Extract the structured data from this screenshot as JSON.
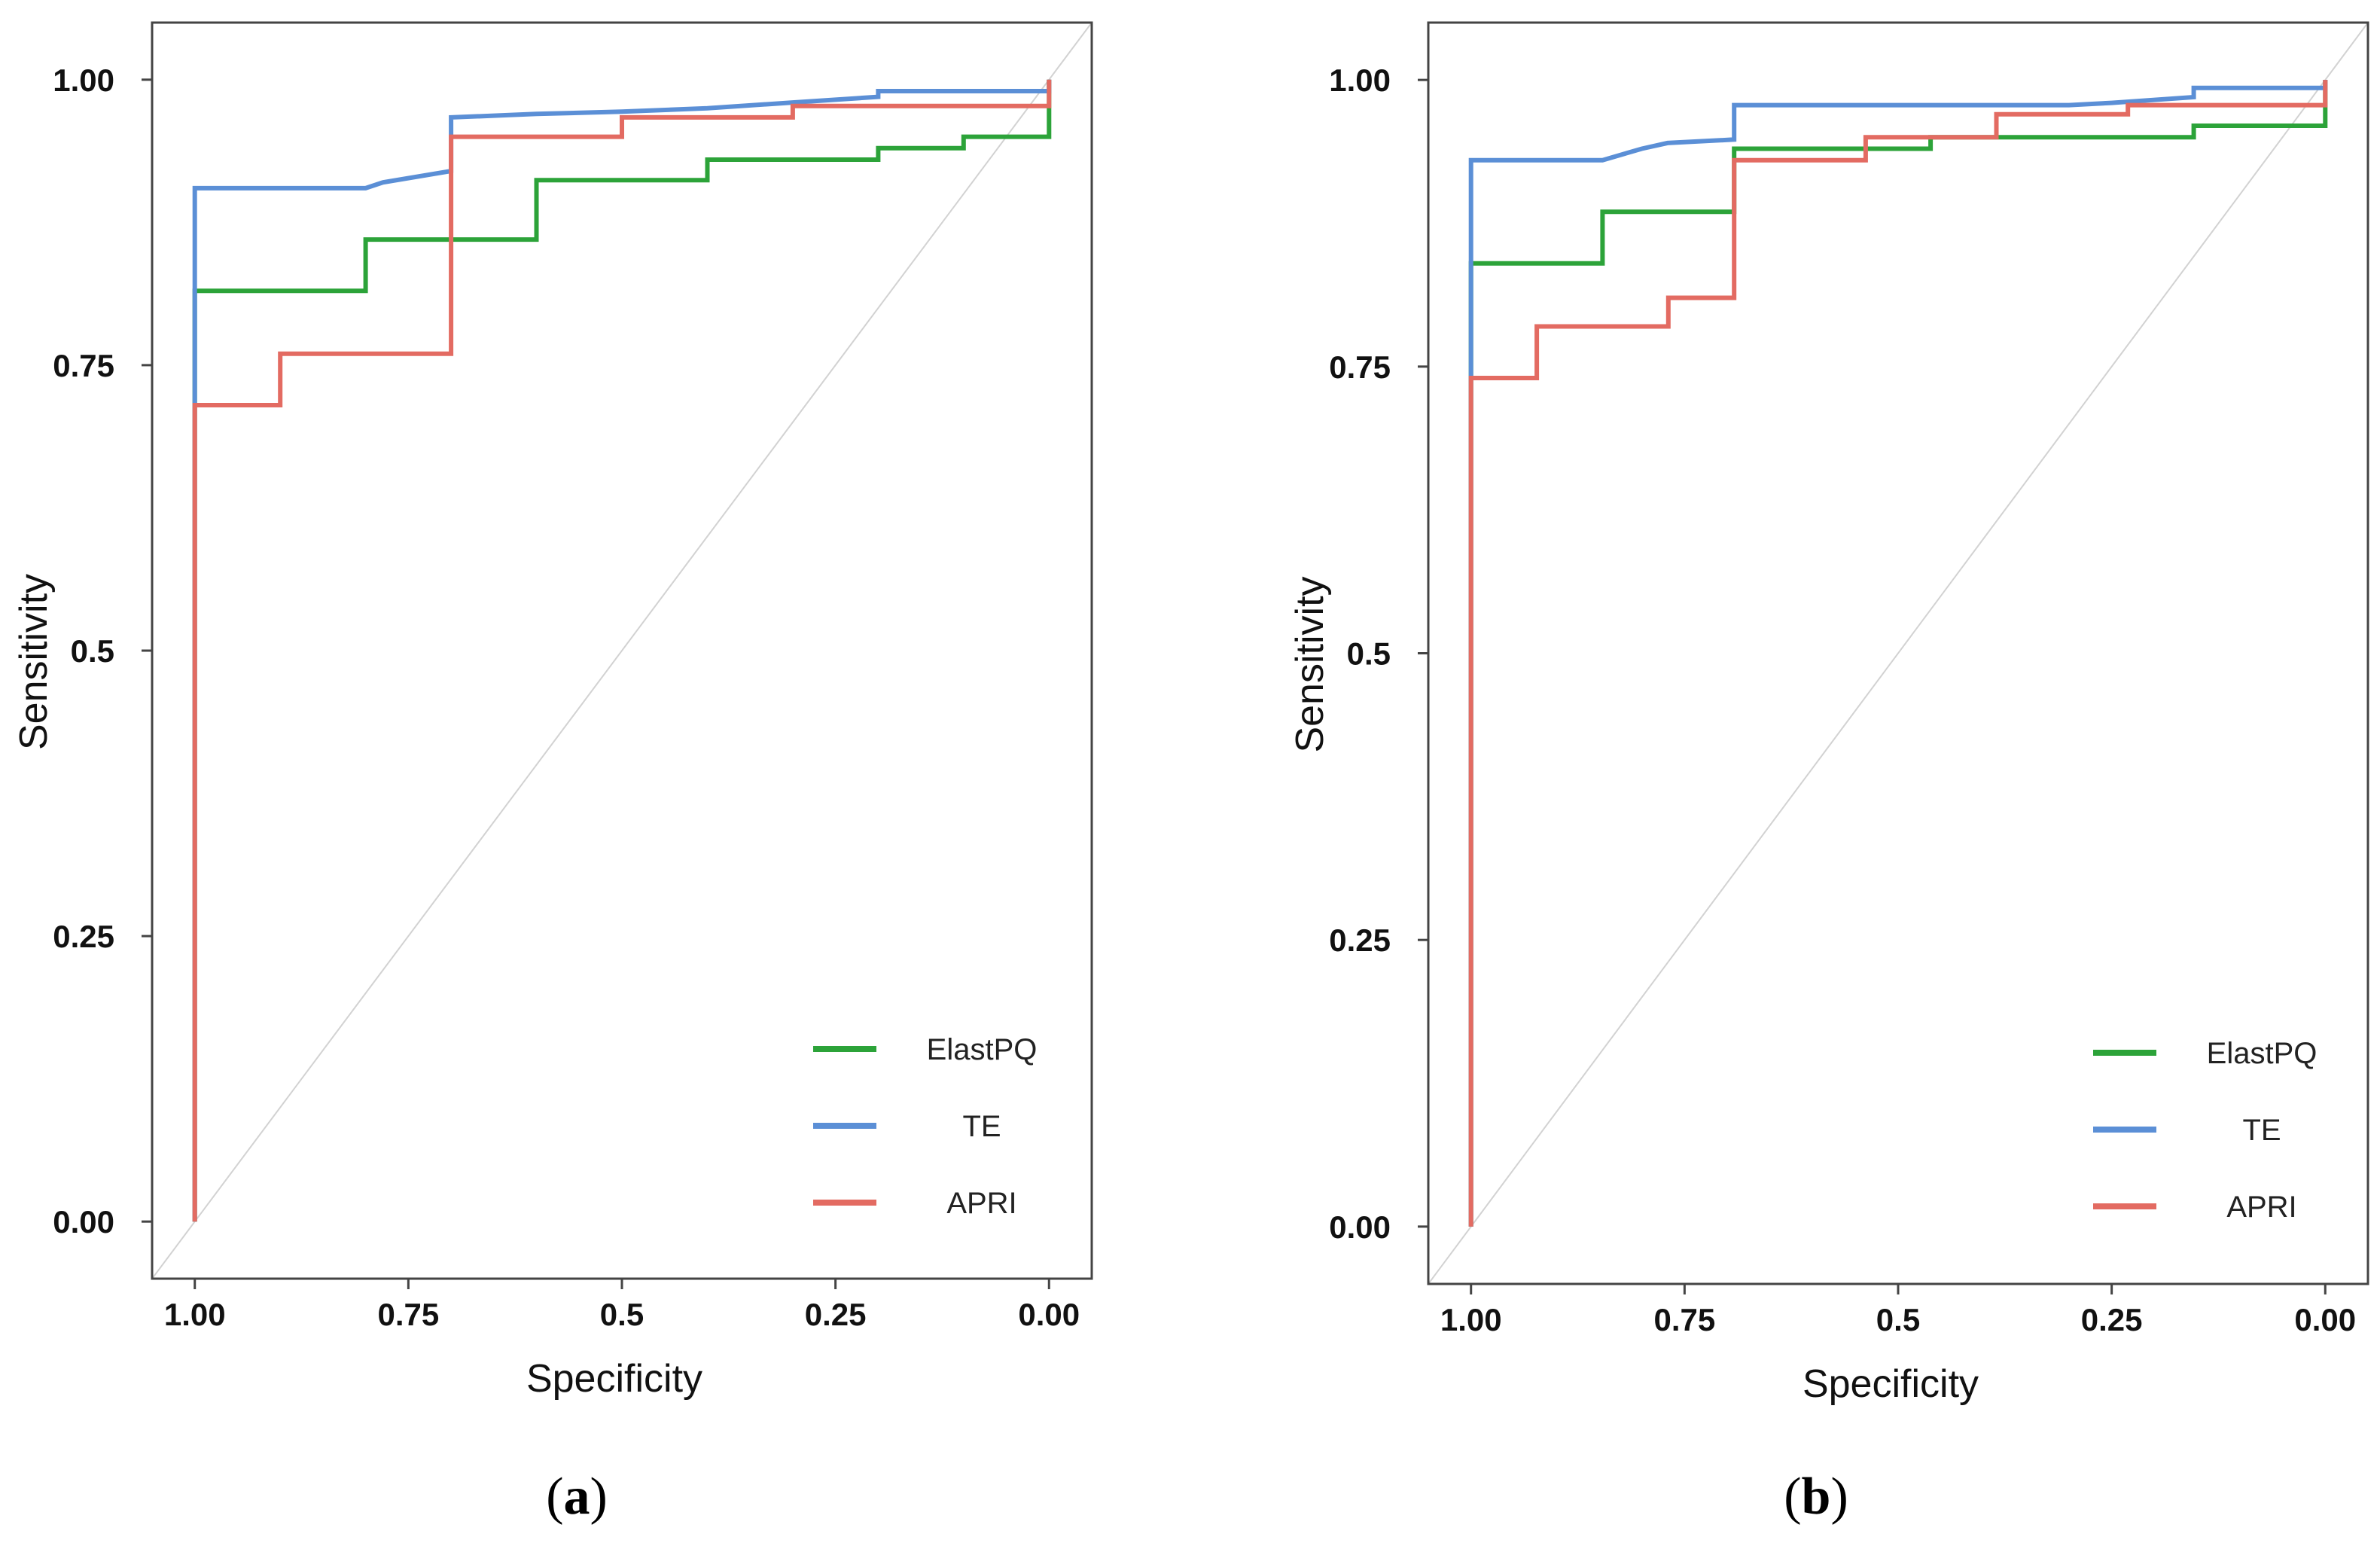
{
  "chart_data": [
    {
      "type": "line",
      "panel_label": "a",
      "xlabel": "Specificity",
      "ylabel": "Sensitivity",
      "x_reversed": true,
      "xlim": [
        1.05,
        -0.05
      ],
      "ylim": [
        -0.05,
        1.05
      ],
      "x_ticks": [
        1.0,
        0.75,
        0.5,
        0.25,
        0.0
      ],
      "x_tick_labels": [
        "1.00",
        "0.75",
        "0.5",
        "0.25",
        "0.00"
      ],
      "y_ticks": [
        0.0,
        0.25,
        0.5,
        0.75,
        1.0
      ],
      "y_tick_labels": [
        "0.00",
        "0.25",
        "0.5",
        "0.75",
        "1.00"
      ],
      "grid": false,
      "reference_diagonal": true,
      "legend_position": "bottom-right",
      "series": [
        {
          "name": "ElastPQ",
          "color": "#2ca339",
          "x": [
            1.0,
            1.0,
            0.8,
            0.8,
            0.6,
            0.6,
            0.4,
            0.4,
            0.2,
            0.2,
            0.1,
            0.1,
            0.0,
            0.0
          ],
          "y": [
            0.0,
            0.815,
            0.815,
            0.86,
            0.86,
            0.912,
            0.912,
            0.93,
            0.93,
            0.94,
            0.94,
            0.95,
            0.95,
            1.0
          ]
        },
        {
          "name": "TE",
          "color": "#5b8fd6",
          "x": [
            1.0,
            1.0,
            0.8,
            0.78,
            0.7,
            0.7,
            0.6,
            0.5,
            0.4,
            0.3,
            0.2,
            0.2,
            0.0,
            0.0
          ],
          "y": [
            0.0,
            0.905,
            0.905,
            0.91,
            0.92,
            0.967,
            0.97,
            0.972,
            0.975,
            0.98,
            0.985,
            0.99,
            0.99,
            1.0
          ]
        },
        {
          "name": "APRI",
          "color": "#e36b62",
          "x": [
            1.0,
            1.0,
            0.9,
            0.9,
            0.7,
            0.7,
            0.5,
            0.5,
            0.3,
            0.3,
            0.0,
            0.0
          ],
          "y": [
            0.0,
            0.715,
            0.715,
            0.76,
            0.76,
            0.95,
            0.95,
            0.967,
            0.967,
            0.977,
            0.977,
            1.0
          ]
        }
      ]
    },
    {
      "type": "line",
      "panel_label": "b",
      "xlabel": "Specificity",
      "ylabel": "Sensitivity",
      "x_reversed": true,
      "xlim": [
        1.05,
        -0.05
      ],
      "ylim": [
        -0.05,
        1.05
      ],
      "x_ticks": [
        1.0,
        0.75,
        0.5,
        0.25,
        0.0
      ],
      "x_tick_labels": [
        "1.00",
        "0.75",
        "0.5",
        "0.25",
        "0.00"
      ],
      "y_ticks": [
        0.0,
        0.25,
        0.5,
        0.75,
        1.0
      ],
      "y_tick_labels": [
        "0.00",
        "0.25",
        "0.5",
        "0.75",
        "1.00"
      ],
      "grid": false,
      "reference_diagonal": true,
      "legend_position": "bottom-right",
      "series": [
        {
          "name": "ElastPQ",
          "color": "#2ca339",
          "x": [
            1.0,
            1.0,
            0.846,
            0.846,
            0.692,
            0.692,
            0.462,
            0.462,
            0.154,
            0.154,
            0.0,
            0.0
          ],
          "y": [
            0.0,
            0.84,
            0.84,
            0.885,
            0.885,
            0.94,
            0.94,
            0.95,
            0.95,
            0.96,
            0.96,
            1.0
          ]
        },
        {
          "name": "TE",
          "color": "#5b8fd6",
          "x": [
            1.0,
            1.0,
            0.846,
            0.8,
            0.77,
            0.692,
            0.692,
            0.3,
            0.25,
            0.154,
            0.154,
            0.0,
            0.0
          ],
          "y": [
            0.0,
            0.93,
            0.93,
            0.94,
            0.945,
            0.948,
            0.978,
            0.978,
            0.98,
            0.985,
            0.993,
            0.993,
            1.0
          ]
        },
        {
          "name": "APRI",
          "color": "#e36b62",
          "x": [
            1.0,
            1.0,
            0.923,
            0.923,
            0.769,
            0.769,
            0.692,
            0.692,
            0.538,
            0.538,
            0.385,
            0.385,
            0.231,
            0.231,
            0.0,
            0.0
          ],
          "y": [
            0.0,
            0.74,
            0.74,
            0.785,
            0.785,
            0.81,
            0.81,
            0.93,
            0.93,
            0.95,
            0.95,
            0.97,
            0.97,
            0.978,
            0.978,
            1.0
          ]
        }
      ]
    }
  ]
}
